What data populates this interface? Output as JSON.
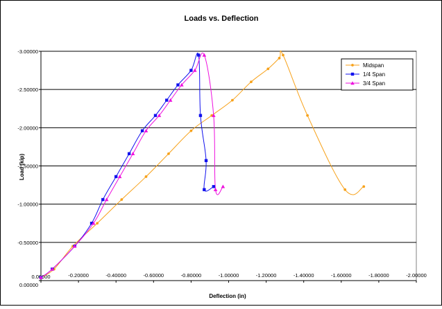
{
  "chart_data": {
    "type": "line",
    "title": "Loads vs. Deflection",
    "xlabel": "Deflection (in)",
    "ylabel": "Load (kip)",
    "xlim": [
      0,
      -2
    ],
    "ylim": [
      0,
      -3
    ],
    "x_ticks": [
      "0.00000",
      "-0.20000",
      "-0.40000",
      "-0.60000",
      "-0.80000",
      "-1.00000",
      "-1.20000",
      "-1.40000",
      "-1.60000",
      "-1.80000",
      "-2.00000"
    ],
    "y_ticks": [
      "0.00000",
      "-0.50000",
      "-1.00000",
      "-1.50000",
      "-2.00000",
      "-2.50000",
      "-3.00000"
    ],
    "x_tick_values": [
      0,
      -0.2,
      -0.4,
      -0.6,
      -0.8,
      -1.0,
      -1.2,
      -1.4,
      -1.6,
      -1.8,
      -2.0
    ],
    "y_tick_values": [
      0,
      -0.5,
      -1.0,
      -1.5,
      -2.0,
      -2.5,
      -3.0
    ],
    "gridlines": "horizontal",
    "legend_position": "top-right",
    "series": [
      {
        "name": "Midspan",
        "color": "#F7A21B",
        "marker": "circle",
        "x": [
          0,
          -0.07,
          -0.17,
          -0.3,
          -0.43,
          -0.56,
          -0.68,
          -0.8,
          -0.91,
          -1.02,
          -1.12,
          -1.21,
          -1.27,
          -1.29,
          -1.42,
          -1.62,
          -1.72
        ],
        "y": [
          -0.04,
          -0.15,
          -0.45,
          -0.75,
          -1.06,
          -1.36,
          -1.66,
          -1.96,
          -2.16,
          -2.36,
          -2.6,
          -2.77,
          -2.91,
          -2.95,
          -2.16,
          -1.19,
          -1.23
        ]
      },
      {
        "name": "1/4 Span",
        "color": "#1010EE",
        "marker": "square",
        "x": [
          0,
          -0.06,
          -0.18,
          -0.27,
          -0.33,
          -0.4,
          -0.47,
          -0.54,
          -0.61,
          -0.67,
          -0.73,
          -0.8,
          -0.84,
          -0.85,
          -0.88,
          -0.87,
          -0.92
        ],
        "y": [
          -0.04,
          -0.15,
          -0.45,
          -0.75,
          -1.06,
          -1.36,
          -1.66,
          -1.96,
          -2.16,
          -2.36,
          -2.56,
          -2.75,
          -2.95,
          -2.16,
          -1.57,
          -1.19,
          -1.23
        ]
      },
      {
        "name": "3/4 Span",
        "color": "#EE10DE",
        "marker": "triangle",
        "x": [
          0,
          -0.06,
          -0.18,
          -0.28,
          -0.35,
          -0.42,
          -0.49,
          -0.56,
          -0.63,
          -0.69,
          -0.75,
          -0.82,
          -0.87,
          -0.92,
          -0.93,
          -0.97
        ],
        "y": [
          -0.04,
          -0.15,
          -0.45,
          -0.75,
          -1.06,
          -1.36,
          -1.66,
          -1.96,
          -2.16,
          -2.36,
          -2.56,
          -2.75,
          -2.95,
          -2.16,
          -1.19,
          -1.23
        ]
      }
    ]
  }
}
